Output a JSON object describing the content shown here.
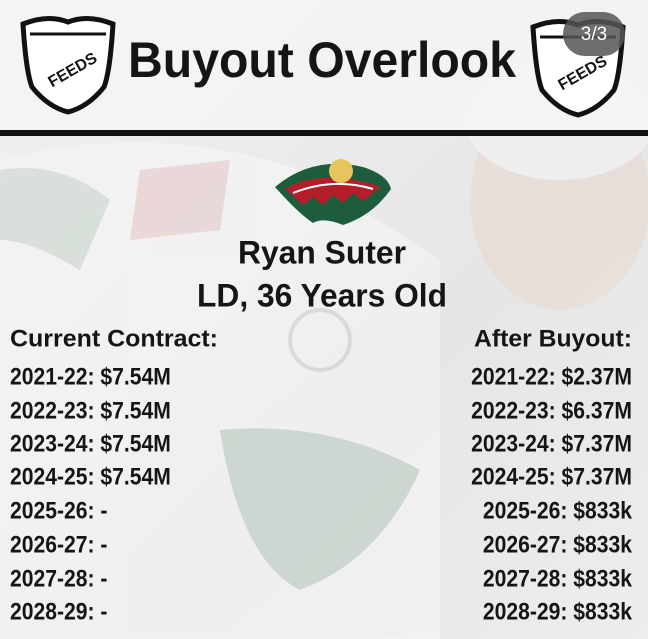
{
  "badge": "3/3",
  "header": {
    "title": "Buyout Overlook",
    "logo_text": [
      "FEEDS",
      "FEEDS"
    ]
  },
  "player": {
    "name": "Ryan Suter",
    "details": "LD, 36 Years Old"
  },
  "current_contract": {
    "heading": "Current Contract:",
    "rows": [
      "2021-22: $7.54M",
      "2022-23: $7.54M",
      "2023-24: $7.54M",
      "2024-25: $7.54M",
      "2025-26: -",
      "2026-27: -",
      "2027-28: -",
      "2028-29: -"
    ]
  },
  "after_buyout": {
    "heading": "After Buyout:",
    "rows": [
      "2021-22: $2.37M",
      "2022-23: $6.37M",
      "2023-24: $7.37M",
      "2024-25: $7.37M",
      "2025-26: $833k",
      "2026-27: $833k",
      "2027-28: $833k",
      "2028-29: $833k"
    ]
  }
}
